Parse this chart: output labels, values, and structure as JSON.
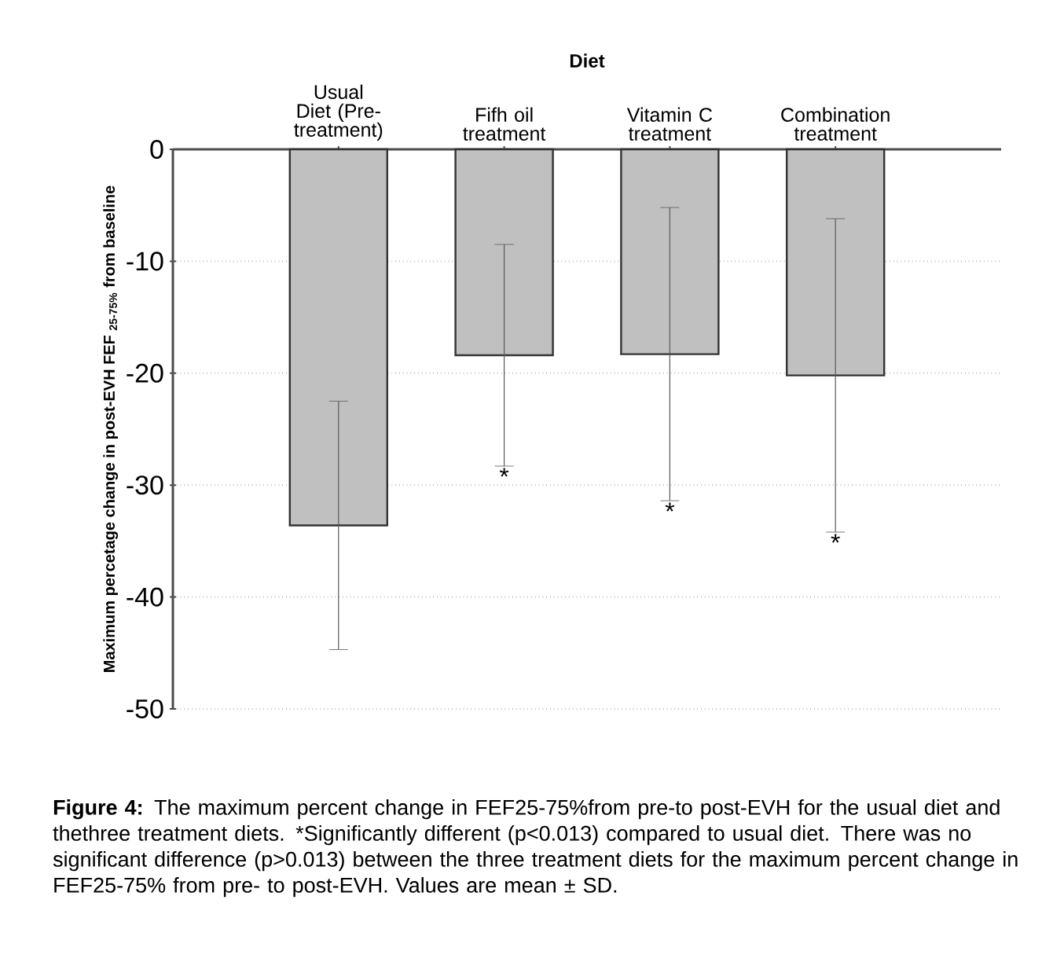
{
  "chart_data": {
    "type": "bar",
    "xlabel": "Diet",
    "ylabel": "Maximum percetage  change in post-EVH FEF $_{25-75%}$ from baseline",
    "categories": [
      "Usual Diet (Pre-treatment)",
      "Fifh oil treatment",
      "Vitamin C treatment",
      "Combination treatment"
    ],
    "values": [
      -33.6,
      -18.4,
      -18.3,
      -20.2
    ],
    "errors": [
      11.1,
      9.9,
      13.1,
      14.0
    ],
    "color": "#c0c0c0",
    "ylim": [
      -50,
      0
    ],
    "yticks": [
      -50,
      -40,
      -30,
      -20,
      -10,
      0
    ],
    "grid": "y",
    "annotations": [
      "*",
      "*",
      "*",
      "**Figure 4:** The maximum percent change in FEF25-75%from pre-to post-EVH for the usual diet and thethree treatment diets. *Significantly different (p<0.013) compared to usual diet. There was no significant difference (p>0.013) between the three treatment diets for the maximum percent change in FEF25-75% from pre- to post-EVH. Values are mean ± SD."
    ]
  }
}
